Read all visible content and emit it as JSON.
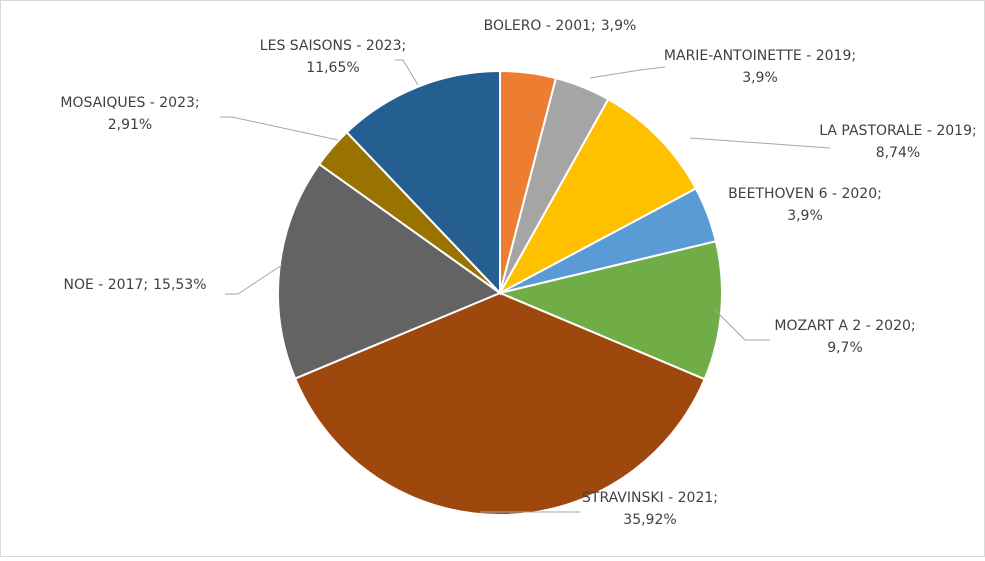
{
  "chart_data": {
    "type": "pie",
    "categories": [
      "BOLERO - 2001",
      "MARIE-ANTOINETTE - 2019",
      "LA PASTORALE - 2019",
      "BEETHOVEN 6 - 2020",
      "MOZART A 2 - 2020",
      "STRAVINSKI - 2021",
      "NOE - 2017",
      "MOSAIQUES - 2023",
      "LES SAISONS - 2023"
    ],
    "values": [
      3.9,
      3.9,
      8.74,
      3.9,
      9.7,
      35.92,
      15.53,
      2.91,
      11.65
    ],
    "value_labels": [
      "3,9%",
      "3,9%",
      "8,74%",
      "3,9%",
      "9,7%",
      "35,92%",
      "15,53%",
      "2,91%",
      "11,65%"
    ],
    "label_separator": ";",
    "colors": [
      "#ED7D31",
      "#A5A5A5",
      "#FFC000",
      "#5B9BD5",
      "#70AD47",
      "#9E480E",
      "#636363",
      "#997300",
      "#255E91"
    ]
  }
}
